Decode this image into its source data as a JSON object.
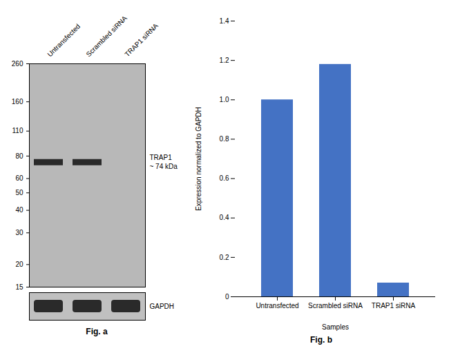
{
  "chart_data": [
    {
      "type": "blot",
      "categories": [
        "Untransfected",
        "Scrambled siRNA",
        "TRAP1 siRNA"
      ],
      "values": [
        74,
        74,
        null
      ],
      "color": "#2a2a2a",
      "log": "y",
      "ylim": [
        15,
        260
      ],
      "yticks": [
        260,
        160,
        110,
        80,
        60,
        50,
        40,
        30,
        20,
        15
      ],
      "annotations": [
        "TRAP1",
        "~ 74 kDa",
        "GAPDH",
        "Fig. a"
      ]
    },
    {
      "type": "bar",
      "categories": [
        "Untransfected",
        "Scrambled siRNA",
        "TRAP1 siRNA"
      ],
      "values": [
        1.0,
        1.18,
        0.07
      ],
      "color": "#4472C4",
      "xlabel": "Samples",
      "ylabel": "Expression normalized to GAPDH",
      "ylim": [
        0,
        1.4
      ],
      "yticks": [
        0,
        0.2,
        0.4,
        0.6,
        0.8,
        {
          "value": 1.0,
          "label": "1.0"
        },
        1.2,
        1.4
      ],
      "grid": false,
      "annotations": [
        "Fig. b"
      ]
    }
  ]
}
